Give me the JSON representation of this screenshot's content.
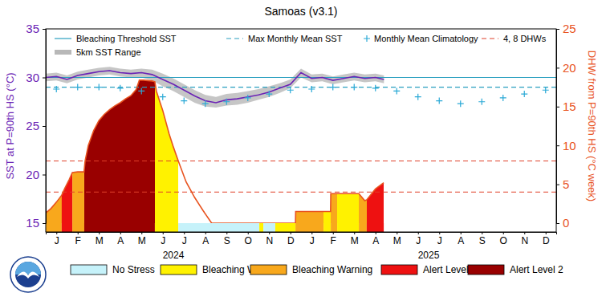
{
  "chart_data": {
    "type": "line",
    "title": "Samoas (v3.1)",
    "y_label": "SST at P=90th HS (°C)",
    "y2_label": "DHW from P=90th HS (°C week)",
    "xlim": [
      0,
      24
    ],
    "xticks": [
      {
        "value": 0.5,
        "label": "J"
      },
      {
        "value": 1.5,
        "label": "F"
      },
      {
        "value": 2.5,
        "label": "M"
      },
      {
        "value": 3.5,
        "label": "A"
      },
      {
        "value": 4.5,
        "label": "M"
      },
      {
        "value": 5.5,
        "label": "J"
      },
      {
        "value": 6.5,
        "label": "J"
      },
      {
        "value": 7.5,
        "label": "A"
      },
      {
        "value": 8.5,
        "label": "S"
      },
      {
        "value": 9.5,
        "label": "O"
      },
      {
        "value": 10.5,
        "label": "N"
      },
      {
        "value": 11.5,
        "label": "D"
      },
      {
        "value": 12.5,
        "label": "J"
      },
      {
        "value": 13.5,
        "label": "F"
      },
      {
        "value": 14.5,
        "label": "M"
      },
      {
        "value": 15.5,
        "label": "A"
      },
      {
        "value": 16.5,
        "label": "M"
      },
      {
        "value": 17.5,
        "label": "J"
      },
      {
        "value": 18.5,
        "label": "J"
      },
      {
        "value": 19.5,
        "label": "A"
      },
      {
        "value": 20.5,
        "label": "S"
      },
      {
        "value": 21.5,
        "label": "O"
      },
      {
        "value": 22.5,
        "label": "N"
      },
      {
        "value": 23.5,
        "label": "D"
      }
    ],
    "year_ticks": [
      {
        "value": 6,
        "label": "2024"
      },
      {
        "value": 18,
        "label": "2025"
      }
    ],
    "ylim": [
      15,
      35
    ],
    "yticks": [
      15,
      20,
      25,
      30,
      35
    ],
    "y2lim": [
      0,
      25
    ],
    "y2ticks": [
      0,
      5,
      10,
      15,
      20,
      25
    ],
    "legend": "top",
    "series": [
      {
        "name": "Bleaching Threshold SST",
        "type": "line",
        "line_style": "solid",
        "color": "#2a9fc0",
        "x": [
          0,
          24
        ],
        "values": [
          30.0,
          30.0
        ]
      },
      {
        "name": "Max Monthly Mean SST",
        "type": "line",
        "line_style": "dashed",
        "color": "#2a9fc0",
        "x": [
          0,
          24
        ],
        "values": [
          29.0,
          29.0
        ]
      },
      {
        "name": "Monthly Mean Climatology",
        "type": "scatter",
        "marker": "plus",
        "color": "#2aa9d6",
        "x": [
          0.5,
          1.5,
          2.5,
          3.5,
          4.5,
          5.5,
          6.5,
          7.5,
          8.5,
          9.5,
          10.5,
          11.5,
          12.5,
          13.5,
          14.5,
          15.5,
          16.5,
          17.5,
          18.5,
          19.5,
          20.5,
          21.5,
          22.5,
          23.5
        ],
        "values": [
          28.8,
          29.0,
          29.0,
          28.9,
          28.6,
          28.0,
          27.6,
          27.3,
          27.5,
          27.9,
          28.3,
          28.7,
          28.8,
          29.0,
          29.0,
          28.9,
          28.6,
          28.0,
          27.6,
          27.3,
          27.5,
          27.9,
          28.3,
          28.7
        ]
      },
      {
        "name": "4, 8 DHWs",
        "type": "hline",
        "line_style": "dashed",
        "color": "#e0402a",
        "axis": "y2",
        "values": [
          4,
          8
        ]
      },
      {
        "name": "5km SST Range",
        "type": "area",
        "color": "#b8b8b8",
        "x": [
          0,
          0.5,
          1,
          1.5,
          2,
          2.5,
          3,
          3.5,
          4,
          4.5,
          5,
          5.5,
          6,
          6.5,
          7,
          7.5,
          8,
          8.5,
          9,
          9.5,
          10,
          10.5,
          11,
          11.5,
          12,
          12.5,
          13,
          13.5,
          14,
          14.5,
          15,
          15.5,
          15.9
        ],
        "low": [
          29.6,
          29.7,
          29.4,
          29.8,
          30.0,
          30.2,
          30.3,
          30.1,
          30.0,
          30.0,
          29.7,
          29.1,
          28.6,
          28.0,
          27.4,
          27.0,
          26.9,
          27.1,
          27.2,
          27.4,
          27.7,
          28.0,
          28.4,
          28.9,
          30.0,
          29.5,
          29.6,
          29.3,
          29.5,
          29.7,
          29.5,
          29.6,
          29.4
        ],
        "high": [
          30.4,
          30.5,
          30.2,
          30.6,
          30.8,
          31.0,
          31.1,
          30.9,
          30.8,
          30.9,
          30.8,
          30.4,
          29.9,
          29.3,
          28.7,
          28.2,
          28.0,
          28.3,
          28.4,
          28.6,
          28.8,
          29.1,
          29.4,
          29.8,
          30.9,
          30.3,
          30.4,
          30.1,
          30.3,
          30.5,
          30.3,
          30.4,
          30.2
        ]
      },
      {
        "type": "line",
        "color": "#6b23b5",
        "x": [
          0,
          0.5,
          1,
          1.5,
          2,
          2.5,
          3,
          3.5,
          4,
          4.5,
          5,
          5.5,
          6,
          6.5,
          7,
          7.5,
          8,
          8.5,
          9,
          9.5,
          10,
          10.5,
          11,
          11.5,
          12,
          12.5,
          13,
          13.5,
          14,
          14.5,
          15,
          15.5,
          15.9
        ],
        "values": [
          30.0,
          30.1,
          29.8,
          30.2,
          30.4,
          30.6,
          30.7,
          30.5,
          30.4,
          30.5,
          30.3,
          29.8,
          29.3,
          28.7,
          28.1,
          27.6,
          27.4,
          27.7,
          27.8,
          28.0,
          28.2,
          28.5,
          28.9,
          29.3,
          30.5,
          29.9,
          30.0,
          29.7,
          29.9,
          30.1,
          29.9,
          30.0,
          29.8
        ]
      },
      {
        "type": "line",
        "color": "#e8531f",
        "axis": "y2",
        "x": [
          0,
          0.25,
          0.5,
          0.75,
          0.9,
          1.1,
          1.25,
          1.5,
          1.8,
          1.85,
          2.0,
          2.25,
          2.5,
          2.75,
          3.0,
          3.25,
          3.5,
          3.75,
          4.0,
          4.25,
          4.4,
          4.6,
          5.0,
          5.13,
          5.2,
          5.5,
          5.8,
          6.0,
          6.23,
          6.6,
          7.0,
          7.4,
          7.8,
          11.74,
          11.75,
          13.06,
          13.39,
          13.4,
          14.72,
          15.0,
          15.09,
          15.5,
          15.89
        ],
        "values": [
          1.3,
          1.9,
          2.7,
          3.6,
          4.5,
          5.6,
          6.5,
          6.6,
          6.6,
          8.0,
          10.0,
          11.9,
          13.2,
          14.0,
          14.6,
          15.1,
          15.5,
          16.0,
          16.4,
          17.2,
          18.4,
          18.4,
          18.3,
          18.2,
          17.0,
          14.5,
          11.5,
          9.8,
          8.0,
          5.3,
          3.3,
          1.6,
          0,
          0,
          1.5,
          1.5,
          1.5,
          3.8,
          3.8,
          2.9,
          3.0,
          4.4,
          5.2
        ]
      }
    ],
    "stress_levels": [
      {
        "name": "No Stress",
        "color": "#c6f2fa"
      },
      {
        "name": "Bleaching Watch",
        "color": "#fff200"
      },
      {
        "name": "Bleaching Warning",
        "color": "#f8a81c"
      },
      {
        "name": "Alert Level 1",
        "color": "#ee1111"
      },
      {
        "name": "Alert Level 2",
        "color": "#990000"
      }
    ],
    "stress": [
      {
        "start": 0,
        "end": 0.75,
        "level": "Bleaching Warning"
      },
      {
        "start": 0.75,
        "end": 1.25,
        "level": "Alert Level 1"
      },
      {
        "start": 1.25,
        "end": 1.81,
        "level": "Bleaching Warning"
      },
      {
        "start": 1.81,
        "end": 5.13,
        "level": "Alert Level 2"
      },
      {
        "start": 5.13,
        "end": 6.23,
        "level": "Bleaching Watch"
      },
      {
        "start": 6.23,
        "end": 10.04,
        "level": "No Stress"
      },
      {
        "start": 10.04,
        "end": 10.23,
        "level": "Bleaching Watch"
      },
      {
        "start": 10.23,
        "end": 10.79,
        "level": "No Stress"
      },
      {
        "start": 10.79,
        "end": 11.74,
        "level": "Bleaching Watch"
      },
      {
        "start": 11.74,
        "end": 13.06,
        "level": "Bleaching Warning"
      },
      {
        "start": 13.06,
        "end": 13.4,
        "level": "Bleaching Watch"
      },
      {
        "start": 13.4,
        "end": 13.7,
        "level": "Bleaching Warning"
      },
      {
        "start": 13.7,
        "end": 14.72,
        "level": "Bleaching Watch"
      },
      {
        "start": 14.72,
        "end": 15.09,
        "level": "Bleaching Warning"
      },
      {
        "start": 15.09,
        "end": 15.89,
        "level": "Alert Level 1"
      }
    ]
  }
}
